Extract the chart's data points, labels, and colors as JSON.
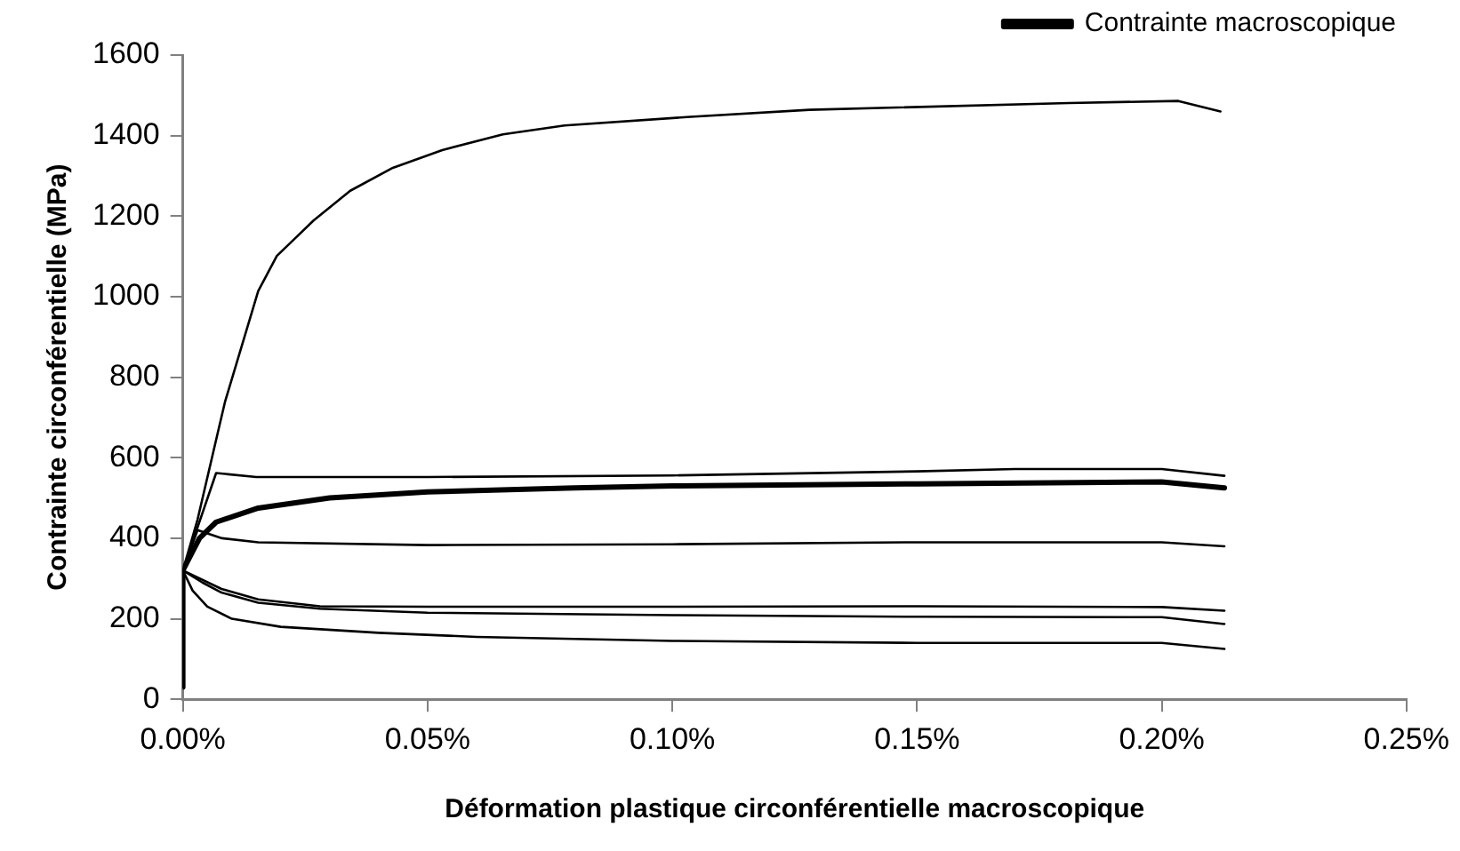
{
  "chart_data": {
    "type": "line",
    "xlabel": "Déformation plastique circonférentielle macroscopique",
    "ylabel": "Contrainte circonférentielle (MPa)",
    "xlim": [
      0,
      0.25
    ],
    "xticks": [
      {
        "value": 0,
        "label": "0.00%"
      },
      {
        "value": 0.05,
        "label": "0.05%"
      },
      {
        "value": 0.1,
        "label": "0.10%"
      },
      {
        "value": 0.15,
        "label": "0.15%"
      },
      {
        "value": 0.2,
        "label": "0.20%"
      },
      {
        "value": 0.25,
        "label": "0.25%"
      }
    ],
    "ylim": [
      0,
      1600
    ],
    "yticks": [
      0,
      200,
      400,
      600,
      800,
      1000,
      1200,
      1400,
      1600
    ],
    "grid": false,
    "legend": "top right",
    "marker": "none",
    "line_style": "solid",
    "series": [
      {
        "color": "#000000",
        "x": [
          0,
          0,
          0.003,
          0.0071,
          0.0086,
          0.0154,
          0.0192,
          0.0267,
          0.0342,
          0.0429,
          0.053,
          0.0654,
          0.078,
          0.103,
          0.128,
          0.181,
          0.2034,
          0.212
        ],
        "values": [
          30,
          320,
          446,
          660,
          738,
          1014,
          1101,
          1189,
          1263,
          1320,
          1364,
          1403,
          1425,
          1446,
          1464,
          1481,
          1486,
          1460
        ]
      },
      {
        "color": "#000000",
        "x": [
          0,
          0,
          0.0068,
          0.015,
          0.05,
          0.1,
          0.15,
          0.17,
          0.2,
          0.2128
        ],
        "values": [
          30,
          320,
          562,
          552,
          552,
          556,
          566,
          572,
          572,
          555
        ]
      },
      {
        "name": "Contrainte macroscopique",
        "color": "#000000",
        "x": [
          0,
          0,
          0.0034,
          0.0068,
          0.0154,
          0.03,
          0.05,
          0.08,
          0.1,
          0.15,
          0.2,
          0.2128
        ],
        "values": [
          30,
          320,
          400,
          440,
          475,
          500,
          515,
          525,
          530,
          535,
          540,
          525
        ]
      },
      {
        "color": "#000000",
        "x": [
          0,
          0,
          0.003,
          0.008,
          0.0154,
          0.05,
          0.1,
          0.15,
          0.2,
          0.2128
        ],
        "values": [
          30,
          320,
          420,
          400,
          390,
          383,
          385,
          390,
          390,
          380
        ]
      },
      {
        "color": "#000000",
        "x": [
          0,
          0,
          0.0079,
          0.0154,
          0.028,
          0.05,
          0.1,
          0.15,
          0.2,
          0.2128
        ],
        "values": [
          30,
          320,
          274,
          248,
          231,
          230,
          230,
          231,
          229,
          220
        ]
      },
      {
        "color": "#000000",
        "x": [
          0,
          0,
          0.004,
          0.0079,
          0.0154,
          0.028,
          0.05,
          0.1,
          0.15,
          0.2,
          0.2128
        ],
        "values": [
          30,
          320,
          290,
          265,
          240,
          225,
          215,
          209,
          205,
          204,
          187
        ]
      },
      {
        "color": "#000000",
        "x": [
          0,
          0,
          0.002,
          0.005,
          0.01,
          0.02,
          0.04,
          0.06,
          0.1,
          0.15,
          0.2,
          0.2128
        ],
        "values": [
          30,
          320,
          270,
          230,
          200,
          180,
          165,
          155,
          145,
          140,
          140,
          125
        ]
      }
    ]
  }
}
